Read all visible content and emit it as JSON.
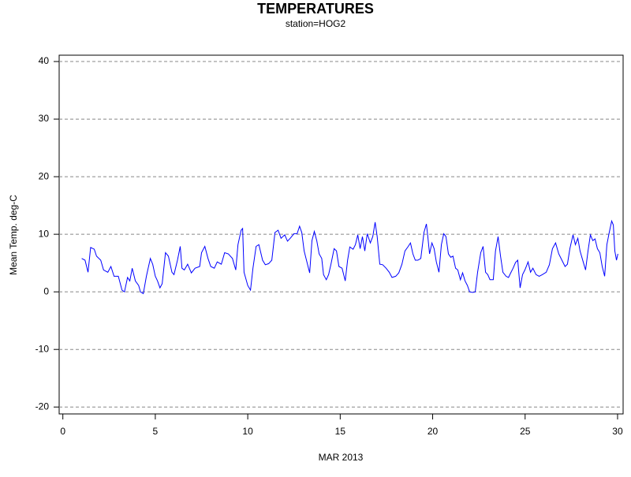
{
  "chart_data": {
    "type": "line",
    "title": "TEMPERATURES",
    "subtitle": "station=HOG2",
    "xlabel": "MAR 2013",
    "ylabel": "Mean Temp. deg-C",
    "color": "#0000ff",
    "grid": true,
    "xlim": [
      -0.2,
      30.3
    ],
    "ylim": [
      -21.2,
      41.1
    ],
    "xticks": [
      0,
      5,
      10,
      15,
      20,
      25,
      30
    ],
    "yticks": [
      -20,
      -10,
      0,
      10,
      20,
      30,
      40
    ],
    "x": [
      1.02,
      1.2,
      1.36,
      1.5,
      1.7,
      1.82,
      2.05,
      2.2,
      2.43,
      2.6,
      2.77,
      3.0,
      3.2,
      3.33,
      3.5,
      3.62,
      3.75,
      3.92,
      4.1,
      4.2,
      4.35,
      4.52,
      4.73,
      4.86,
      5.0,
      5.12,
      5.25,
      5.37,
      5.55,
      5.71,
      5.9,
      6.01,
      6.2,
      6.35,
      6.44,
      6.57,
      6.75,
      6.95,
      7.15,
      7.4,
      7.5,
      7.68,
      7.85,
      8.0,
      8.19,
      8.35,
      8.57,
      8.75,
      8.95,
      9.17,
      9.35,
      9.47,
      9.64,
      9.72,
      9.8,
      10.0,
      10.15,
      10.28,
      10.45,
      10.6,
      10.8,
      10.95,
      11.13,
      11.3,
      11.47,
      11.64,
      11.8,
      12.0,
      12.15,
      12.3,
      12.5,
      12.67,
      12.8,
      12.92,
      13.05,
      13.2,
      13.35,
      13.47,
      13.6,
      13.73,
      13.86,
      14.0,
      14.1,
      14.25,
      14.37,
      14.5,
      14.67,
      14.8,
      14.93,
      15.1,
      15.27,
      15.4,
      15.52,
      15.7,
      15.82,
      15.95,
      16.08,
      16.2,
      16.33,
      16.46,
      16.63,
      16.76,
      16.89,
      17.0,
      17.14,
      17.3,
      17.48,
      17.65,
      17.8,
      18.0,
      18.17,
      18.34,
      18.5,
      18.68,
      18.8,
      18.93,
      19.06,
      19.2,
      19.36,
      19.53,
      19.66,
      19.74,
      19.83,
      19.96,
      20.08,
      20.2,
      20.34,
      20.47,
      20.6,
      20.72,
      20.85,
      20.98,
      21.1,
      21.24,
      21.36,
      21.5,
      21.62,
      21.75,
      21.88,
      22.0,
      22.17,
      22.3,
      22.43,
      22.6,
      22.73,
      22.86,
      22.98,
      23.1,
      23.28,
      23.4,
      23.54,
      23.67,
      23.8,
      23.97,
      24.1,
      24.22,
      24.35,
      24.48,
      24.6,
      24.73,
      24.86,
      24.99,
      25.16,
      25.29,
      25.42,
      25.59,
      25.76,
      25.93,
      26.14,
      26.31,
      26.48,
      26.65,
      26.82,
      26.99,
      27.16,
      27.29,
      27.42,
      27.59,
      27.72,
      27.85,
      27.97,
      28.14,
      28.27,
      28.4,
      28.53,
      28.66,
      28.78,
      28.91,
      29.04,
      29.17,
      29.3,
      29.42,
      29.55,
      29.68,
      29.77,
      29.85,
      29.94,
      30.02
    ],
    "values": [
      5.8,
      5.5,
      3.4,
      7.7,
      7.4,
      6.2,
      5.5,
      3.8,
      3.4,
      4.4,
      2.7,
      2.7,
      0.3,
      0,
      2.5,
      1.9,
      4.1,
      1.9,
      1.1,
      0,
      -0.3,
      2.7,
      5.8,
      4.8,
      2.7,
      1.9,
      0.7,
      1.4,
      6.8,
      6.2,
      3.4,
      3.0,
      5.5,
      7.9,
      4.1,
      3.8,
      4.8,
      3.3,
      4.1,
      4.4,
      6.8,
      7.9,
      5.8,
      4.4,
      4.1,
      5.2,
      4.8,
      6.8,
      6.6,
      5.8,
      3.8,
      8.2,
      10.7,
      11.0,
      3.4,
      1.1,
      0.3,
      4.1,
      7.9,
      8.2,
      5.5,
      4.7,
      4.9,
      5.5,
      10.3,
      10.7,
      9.3,
      9.9,
      8.8,
      9.3,
      10.1,
      10.1,
      11.4,
      10.3,
      7.1,
      5.2,
      3.3,
      8.9,
      10.5,
      8.9,
      6.6,
      5.8,
      3.0,
      2.1,
      3.0,
      4.8,
      7.5,
      7.1,
      4.4,
      4.1,
      1.9,
      5.5,
      7.8,
      7.4,
      8.2,
      9.9,
      7.5,
      9.6,
      7.1,
      10.1,
      8.5,
      9.6,
      12.1,
      9.6,
      4.8,
      4.7,
      4.1,
      3.4,
      2.5,
      2.7,
      3.3,
      4.8,
      7.1,
      7.9,
      8.5,
      6.6,
      5.5,
      5.5,
      5.8,
      10.3,
      11.8,
      9.6,
      6.6,
      8.5,
      7.5,
      5.2,
      3.4,
      8.2,
      10.1,
      9.6,
      6.6,
      6.0,
      6.2,
      4.1,
      3.8,
      2.1,
      3.3,
      1.9,
      1.1,
      0,
      -0.1,
      0,
      3.4,
      6.8,
      7.9,
      3.4,
      3.0,
      2.1,
      2.1,
      7.1,
      9.6,
      6.2,
      3.4,
      2.7,
      2.5,
      3.3,
      4.1,
      5.1,
      5.5,
      0.7,
      3.0,
      3.8,
      5.2,
      3.4,
      4.1,
      3.0,
      2.7,
      3.0,
      3.4,
      4.7,
      7.5,
      8.5,
      6.6,
      5.5,
      4.4,
      4.8,
      7.5,
      9.9,
      8.2,
      9.3,
      7.1,
      5.2,
      3.8,
      7.1,
      9.9,
      8.9,
      9.2,
      7.5,
      6.8,
      4.4,
      2.7,
      8.2,
      10.3,
      12.3,
      11.6,
      7.1,
      5.5,
      6.6
    ]
  }
}
